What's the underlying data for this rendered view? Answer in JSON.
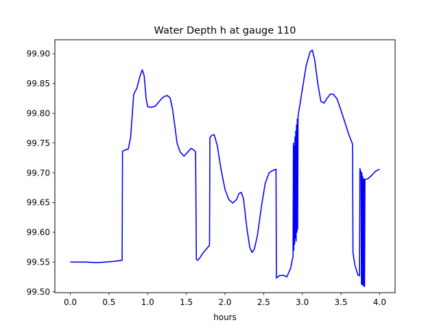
{
  "chart_data": {
    "type": "line",
    "title": "Water Depth h at gauge 110",
    "xlabel": "hours",
    "ylabel": "",
    "xlim": [
      -0.2,
      4.2
    ],
    "ylim": [
      99.4985,
      99.9235
    ],
    "xticks": [
      0.0,
      0.5,
      1.0,
      1.5,
      2.0,
      2.5,
      3.0,
      3.5,
      4.0
    ],
    "xtick_labels": [
      "0.0",
      "0.5",
      "1.0",
      "1.5",
      "2.0",
      "2.5",
      "3.0",
      "3.5",
      "4.0"
    ],
    "yticks": [
      99.5,
      99.55,
      99.6,
      99.65,
      99.7,
      99.75,
      99.8,
      99.85,
      99.9
    ],
    "ytick_labels": [
      "99.50",
      "99.55",
      "99.60",
      "99.65",
      "99.70",
      "99.75",
      "99.80",
      "99.85",
      "99.90"
    ],
    "grid": false,
    "colors": {
      "line": "#0000ff",
      "axes": "#000000",
      "background": "#ffffff"
    },
    "series": [
      {
        "x": [
          0.0,
          0.2,
          0.35,
          0.45,
          0.55,
          0.62,
          0.67,
          0.675,
          0.7,
          0.75,
          0.78,
          0.82,
          0.86,
          0.9,
          0.93,
          0.955,
          0.98,
          1.0,
          1.05,
          1.1,
          1.15,
          1.2,
          1.25,
          1.29,
          1.32,
          1.35,
          1.38,
          1.42,
          1.47,
          1.52,
          1.56,
          1.6,
          1.62,
          1.63,
          1.65,
          1.68,
          1.72,
          1.78,
          1.8,
          1.805,
          1.83,
          1.86,
          1.9,
          1.95,
          2.0,
          2.05,
          2.1,
          2.15,
          2.18,
          2.21,
          2.24,
          2.28,
          2.32,
          2.35,
          2.38,
          2.42,
          2.47,
          2.52,
          2.57,
          2.62,
          2.66,
          2.665,
          2.7,
          2.75,
          2.8,
          2.85,
          2.88,
          2.885,
          2.89,
          2.895,
          2.9,
          2.905,
          2.91,
          2.915,
          2.92,
          2.925,
          2.93,
          2.935,
          2.94,
          2.945,
          2.95,
          2.97,
          3.0,
          3.05,
          3.1,
          3.13,
          3.16,
          3.2,
          3.24,
          3.28,
          3.32,
          3.36,
          3.4,
          3.45,
          3.5,
          3.55,
          3.6,
          3.65,
          3.655,
          3.68,
          3.72,
          3.74,
          3.745,
          3.76,
          3.765,
          3.77,
          3.775,
          3.78,
          3.785,
          3.79,
          3.795,
          3.8,
          3.805,
          3.81,
          3.815,
          3.85,
          3.9,
          3.95,
          4.0
        ],
        "y": [
          99.55,
          99.55,
          99.549,
          99.55,
          99.551,
          99.552,
          99.553,
          99.736,
          99.738,
          99.74,
          99.76,
          99.832,
          99.842,
          99.862,
          99.873,
          99.863,
          99.825,
          99.811,
          99.81,
          99.812,
          99.82,
          99.827,
          99.83,
          99.826,
          99.808,
          99.78,
          99.75,
          99.735,
          99.728,
          99.735,
          99.741,
          99.738,
          99.735,
          99.554,
          99.553,
          99.558,
          99.566,
          99.575,
          99.578,
          99.759,
          99.763,
          99.764,
          99.746,
          99.705,
          99.672,
          99.655,
          99.649,
          99.655,
          99.665,
          99.667,
          99.656,
          99.61,
          99.575,
          99.566,
          99.572,
          99.595,
          99.642,
          99.682,
          99.7,
          99.704,
          99.706,
          99.523,
          99.527,
          99.528,
          99.525,
          99.54,
          99.56,
          99.75,
          99.57,
          99.745,
          99.58,
          99.76,
          99.59,
          99.77,
          99.585,
          99.78,
          99.6,
          99.79,
          99.605,
          99.795,
          99.8,
          99.815,
          99.84,
          99.88,
          99.903,
          99.906,
          99.89,
          99.85,
          99.82,
          99.817,
          99.825,
          99.832,
          99.832,
          99.824,
          99.805,
          99.785,
          99.765,
          99.748,
          99.566,
          99.545,
          99.528,
          99.527,
          99.707,
          99.7,
          99.513,
          99.7,
          99.512,
          99.694,
          99.511,
          99.69,
          99.51,
          99.689,
          99.509,
          99.688,
          99.689,
          99.69,
          99.696,
          99.703,
          99.706
        ]
      }
    ]
  }
}
